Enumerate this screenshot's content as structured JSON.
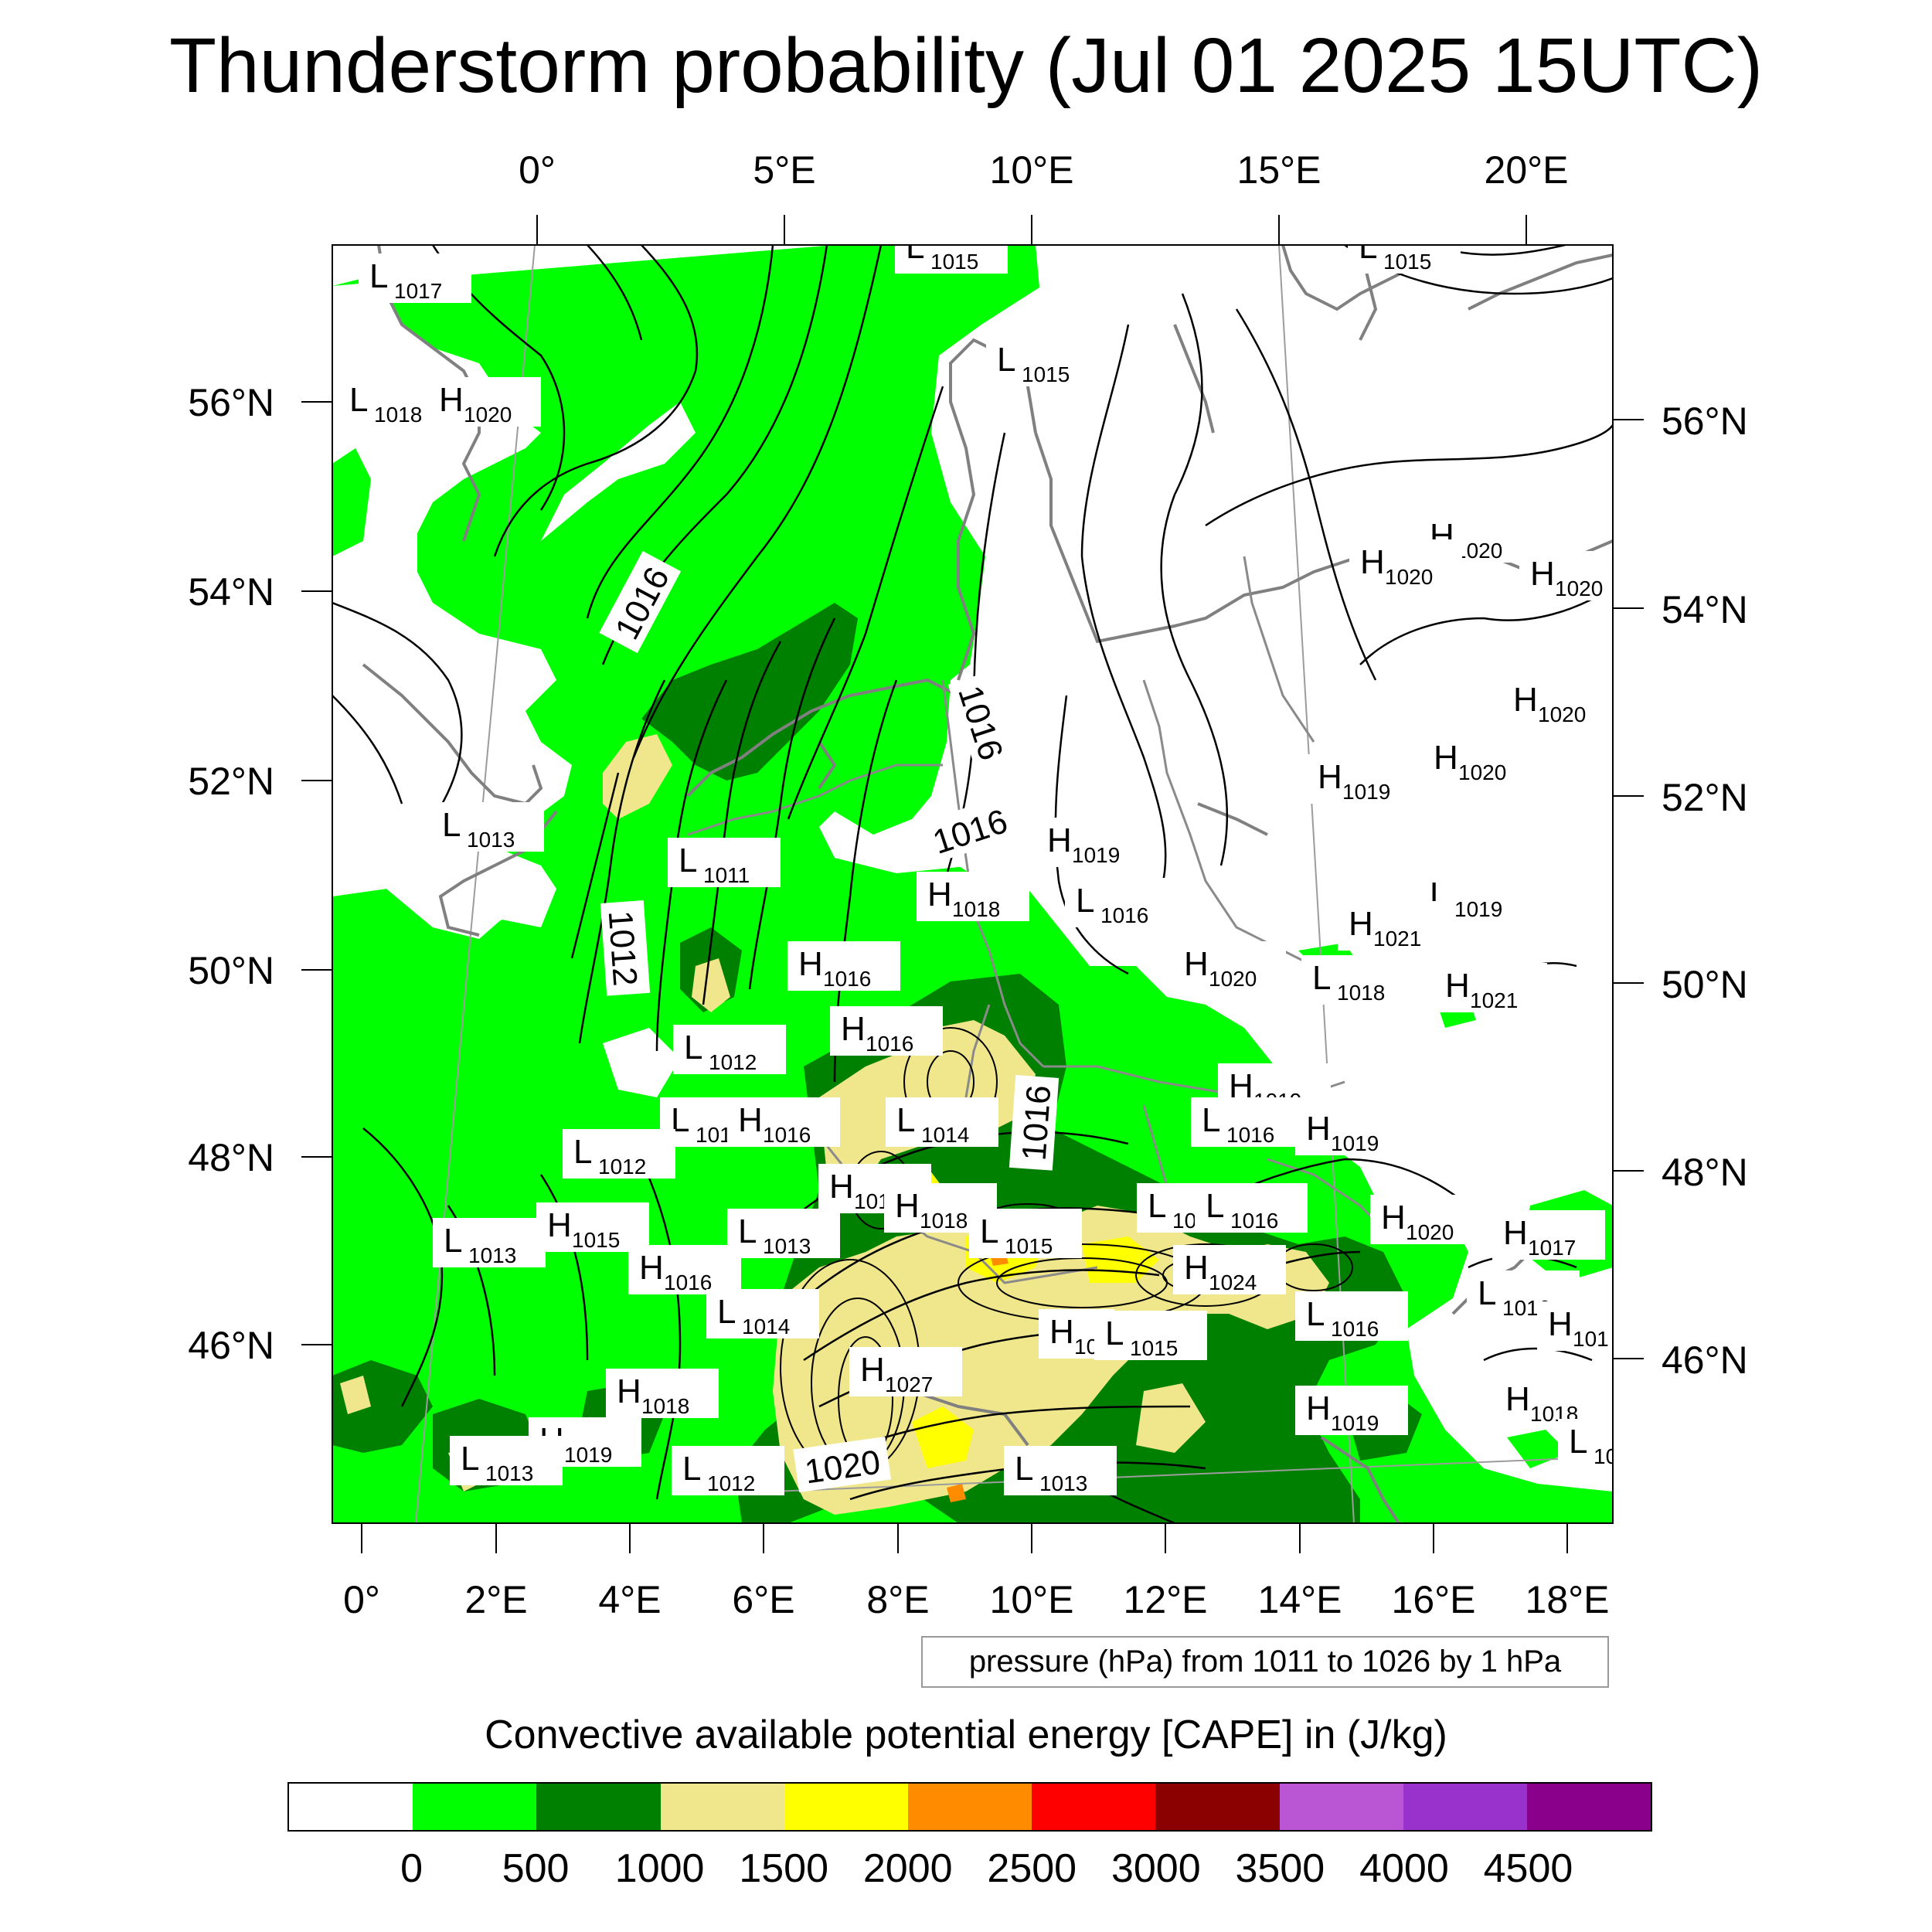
{
  "title": "Thunderstorm probability (Jul 01 2025 15UTC)",
  "top_lon_labels": [
    "0°",
    "5°E",
    "10°E",
    "15°E",
    "20°E"
  ],
  "bottom_lon_labels": [
    "0°",
    "2°E",
    "4°E",
    "6°E",
    "8°E",
    "10°E",
    "12°E",
    "14°E",
    "16°E",
    "18°E"
  ],
  "left_lat_labels": [
    "56°N",
    "54°N",
    "52°N",
    "50°N",
    "48°N",
    "46°N"
  ],
  "right_lat_labels": [
    "56°N",
    "54°N",
    "52°N",
    "50°N",
    "48°N",
    "46°N"
  ],
  "contour_info": "pressure (hPa) from 1011 to 1026 by 1 hPa",
  "colorbar": {
    "title": "Convective available potential energy [CAPE] in (J/kg)",
    "colors": [
      "#ffffff",
      "#00ff00",
      "#008000",
      "#f0e68c",
      "#ffff00",
      "#ff8c00",
      "#ff0000",
      "#8b0000",
      "#ba55d3",
      "#9932cc",
      "#8b008b"
    ],
    "tick_labels": [
      "0",
      "500",
      "1000",
      "1500",
      "2000",
      "2500",
      "3000",
      "3500",
      "4000",
      "4500"
    ]
  },
  "isobar_labels": [
    "1016",
    "1016",
    "1016",
    "1012",
    "1016",
    "1020"
  ],
  "pressure_centers": [
    {
      "t": "L",
      "v": "1017"
    },
    {
      "t": "L",
      "v": "1018"
    },
    {
      "t": "H",
      "v": "1020"
    },
    {
      "t": "L",
      "v": "1015"
    },
    {
      "t": "L",
      "v": "1015"
    },
    {
      "t": "L",
      "v": "1015"
    },
    {
      "t": "H",
      "v": "1020"
    },
    {
      "t": "H",
      "v": "1020"
    },
    {
      "t": "H",
      "v": "1020"
    },
    {
      "t": "H",
      "v": "1020"
    },
    {
      "t": "H",
      "v": "1020"
    },
    {
      "t": "H",
      "v": "1019"
    },
    {
      "t": "L",
      "v": "1013"
    },
    {
      "t": "L",
      "v": "1011"
    },
    {
      "t": "H",
      "v": "1019"
    },
    {
      "t": "H",
      "v": "1018"
    },
    {
      "t": "L",
      "v": "1016"
    },
    {
      "t": "L",
      "v": "1019"
    },
    {
      "t": "H",
      "v": "1021"
    },
    {
      "t": "H",
      "v": "1016"
    },
    {
      "t": "H",
      "v": "1020"
    },
    {
      "t": "L",
      "v": "1018"
    },
    {
      "t": "H",
      "v": "1021"
    },
    {
      "t": "H",
      "v": "1016"
    },
    {
      "t": "L",
      "v": "1012"
    },
    {
      "t": "H",
      "v": "1019"
    },
    {
      "t": "L",
      "v": "1012"
    },
    {
      "t": "H",
      "v": "1016"
    },
    {
      "t": "L",
      "v": "1014"
    },
    {
      "t": "L",
      "v": "1016"
    },
    {
      "t": "H",
      "v": "1019"
    },
    {
      "t": "L",
      "v": "1012"
    },
    {
      "t": "H",
      "v": "1018"
    },
    {
      "t": "H",
      "v": "1018"
    },
    {
      "t": "L",
      "v": "101"
    },
    {
      "t": "L",
      "v": "1016"
    },
    {
      "t": "H",
      "v": "1020"
    },
    {
      "t": "L",
      "v": "1013"
    },
    {
      "t": "H",
      "v": "1015"
    },
    {
      "t": "L",
      "v": "1013"
    },
    {
      "t": "L",
      "v": "1015"
    },
    {
      "t": "H",
      "v": "1017"
    },
    {
      "t": "H",
      "v": "1016"
    },
    {
      "t": "H",
      "v": "1024"
    },
    {
      "t": "L",
      "v": "1016"
    },
    {
      "t": "L",
      "v": "1014"
    },
    {
      "t": "L",
      "v": "1016"
    },
    {
      "t": "H",
      "v": "101"
    },
    {
      "t": "H",
      "v": "10"
    },
    {
      "t": "L",
      "v": "1015"
    },
    {
      "t": "H",
      "v": "1027"
    },
    {
      "t": "H",
      "v": "1018"
    },
    {
      "t": "H",
      "v": "1018"
    },
    {
      "t": "H",
      "v": "1019"
    },
    {
      "t": "L",
      "v": "1013"
    },
    {
      "t": "H",
      "v": "1019"
    },
    {
      "t": "L",
      "v": "1012"
    },
    {
      "t": "L",
      "v": "1013"
    },
    {
      "t": "L",
      "v": "10"
    }
  ]
}
